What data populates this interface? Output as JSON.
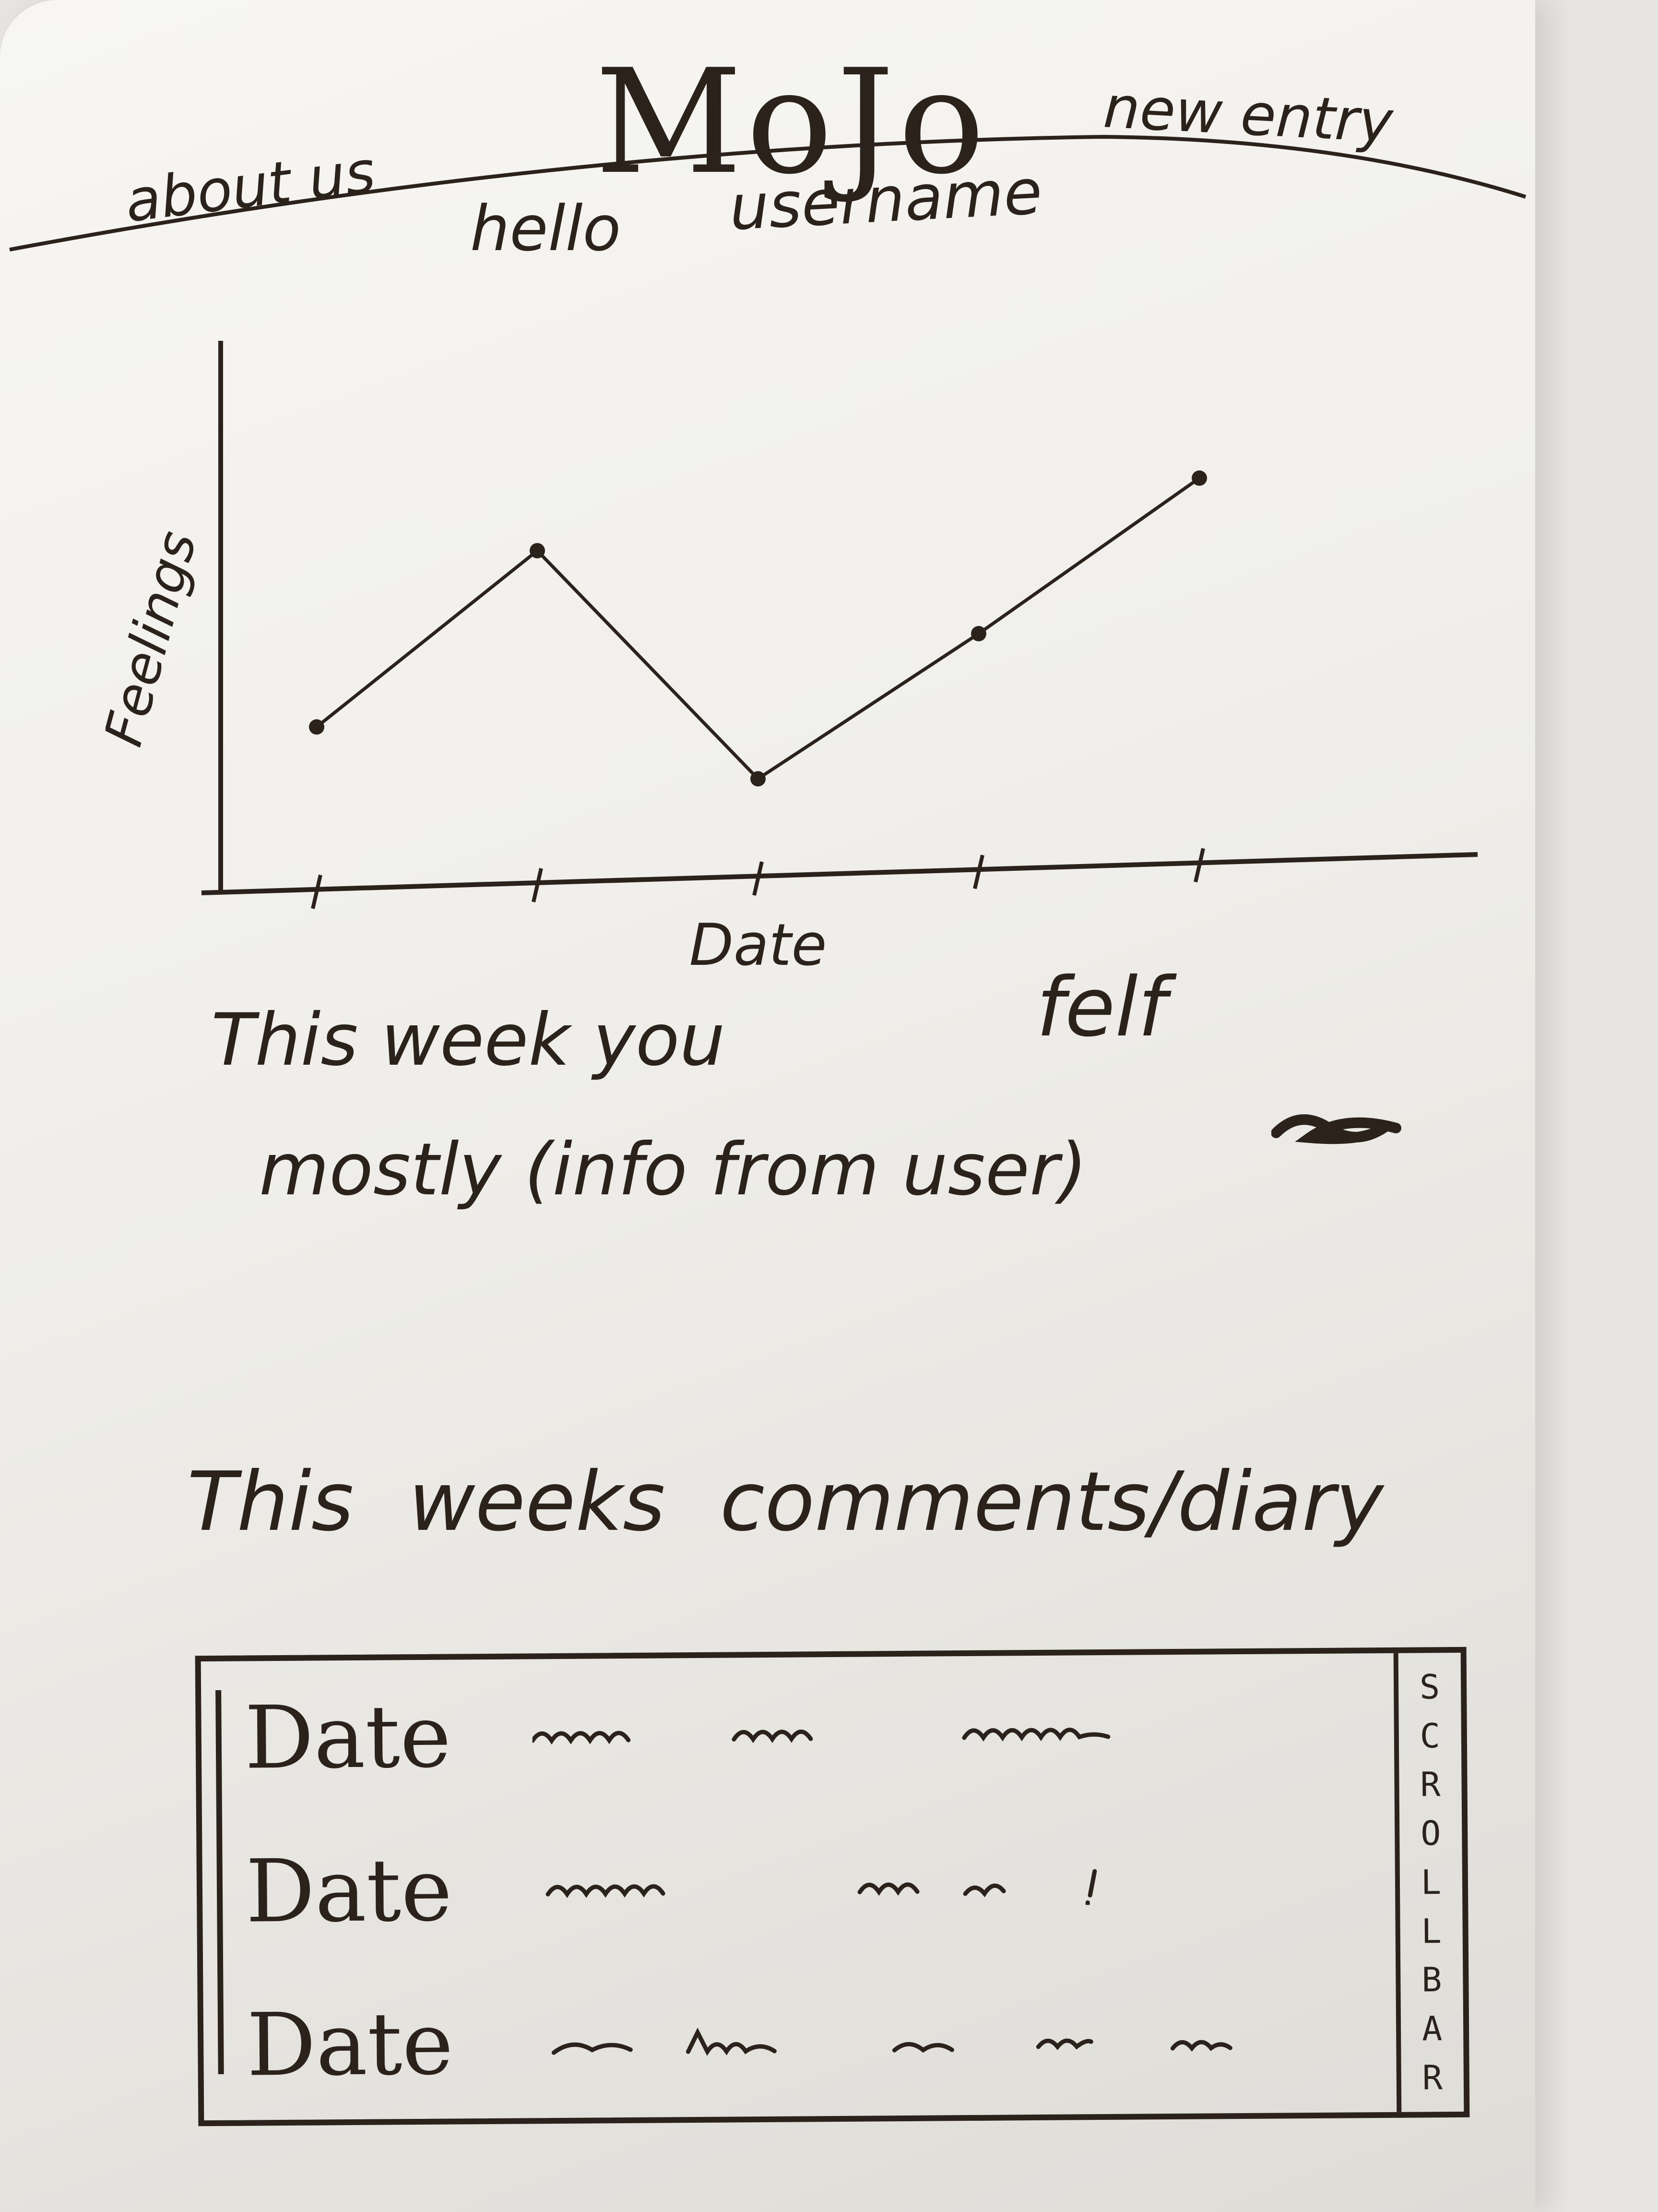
{
  "header": {
    "brand": "MoJo",
    "about_label": "about us",
    "new_entry_label": "new entry",
    "greeting": "hello",
    "username": "username"
  },
  "chart_data": {
    "type": "line",
    "title": "",
    "xlabel": "Date",
    "ylabel": "Feelings",
    "categories": [
      "",
      "",
      "",
      "",
      ""
    ],
    "series": [
      {
        "values": [
          3.2,
          6.6,
          2.2,
          5.0,
          8.0
        ]
      }
    ],
    "ylim": [
      0,
      10
    ],
    "grid": false,
    "legend": "none"
  },
  "summary": {
    "line1": "This week you",
    "felt": "felf",
    "line2": "mostly (info from user)"
  },
  "diary": {
    "heading": "This weeks comments/diary",
    "entries": [
      {
        "date": "Date"
      },
      {
        "date": "Date"
      },
      {
        "date": "Date"
      }
    ],
    "scrollbar_letters": [
      "S",
      "C",
      "R",
      "O",
      "L",
      "L",
      "B",
      "A",
      "R"
    ]
  },
  "colors": {
    "ink": "#2b221c",
    "paper": "#f3f2ee"
  }
}
